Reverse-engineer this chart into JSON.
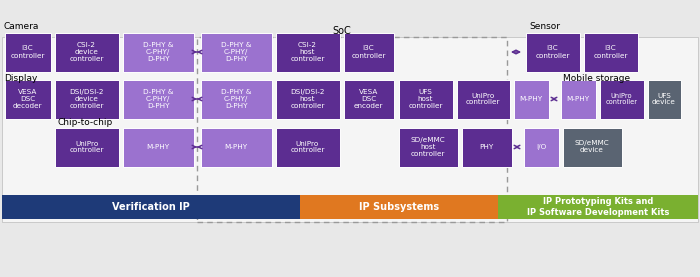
{
  "dark_purple": "#5c2d91",
  "medium_purple": "#9b72cf",
  "dark_gray": "#5a6472",
  "blue_bar": "#1e3a78",
  "orange_bar": "#e07820",
  "green_bar": "#7ab030",
  "bg_color": "#e8e8e8",
  "main_bg": "#f0f0f0",
  "labels": {
    "camera": "Camera",
    "display": "Display",
    "chip_to_chip": "Chip-to-chip",
    "soc": "SoC",
    "sensor": "Sensor",
    "mobile_storage": "Mobile storage",
    "verification": "Verification IP",
    "ip_sub": "IP Subsystems",
    "ip_kits": "IP Prototyping Kits and\nIP Software Development Kits"
  }
}
